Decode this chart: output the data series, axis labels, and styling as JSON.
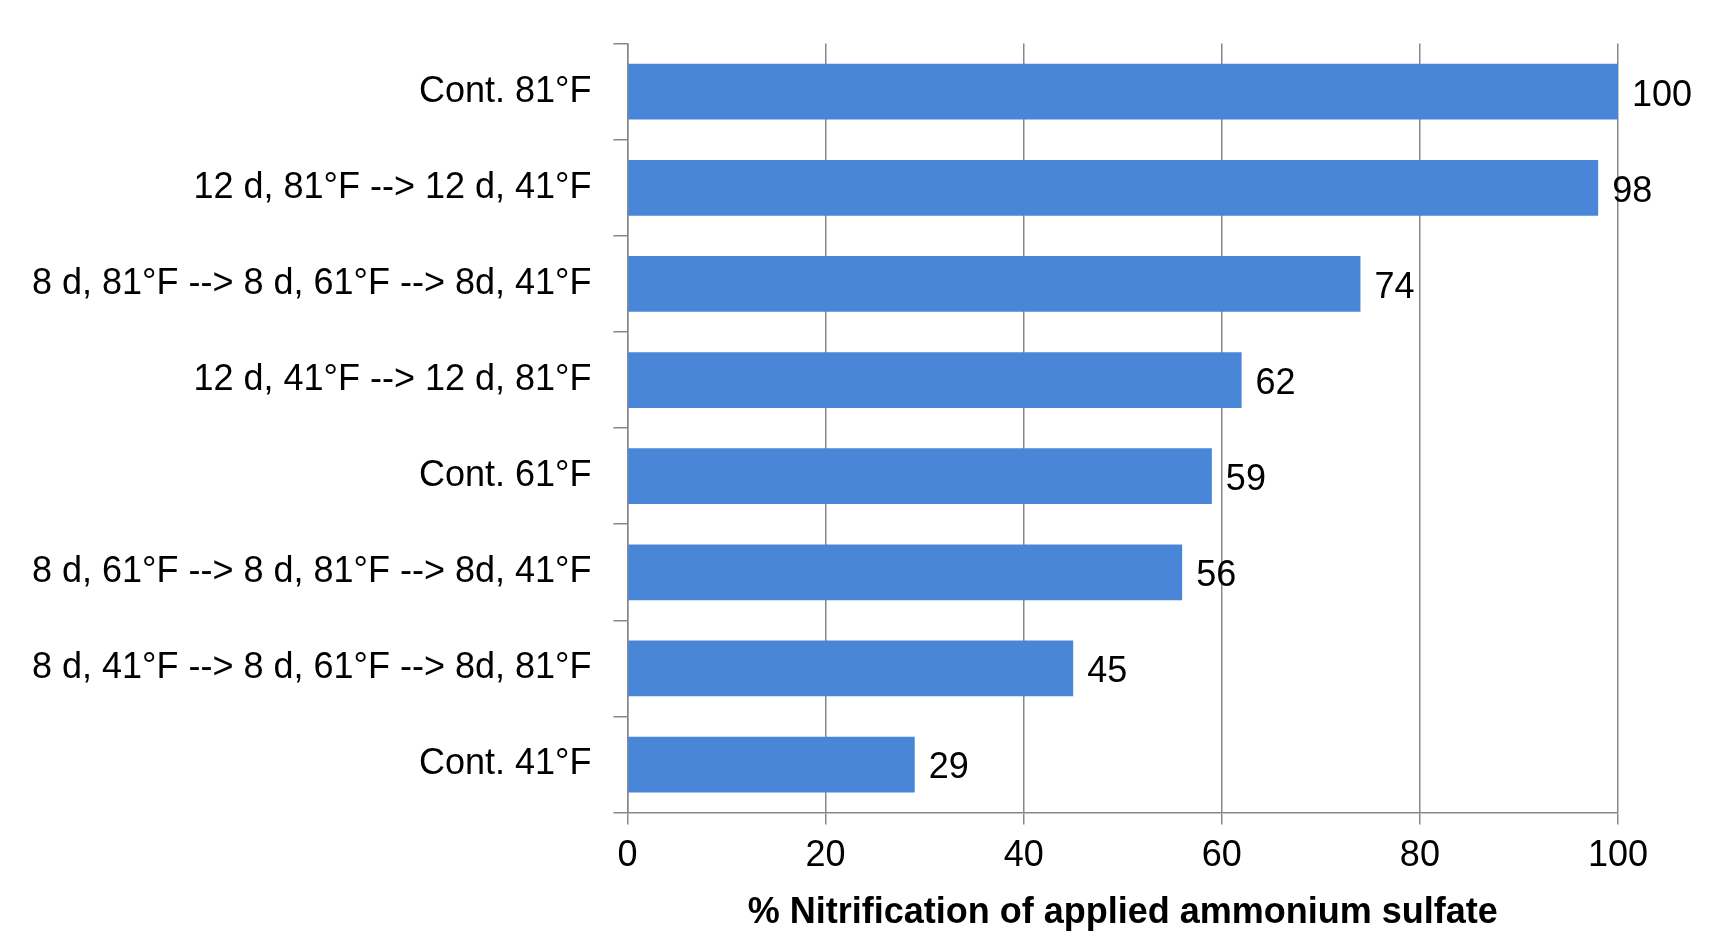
{
  "chart_data": {
    "type": "bar",
    "orientation": "horizontal",
    "xlabel": "% Nitrification of applied ammonium sulfate",
    "categories": [
      "Cont. 81°F",
      "12 d, 81°F --> 12 d, 41°F",
      "8 d, 81°F --> 8 d, 61°F --> 8d, 41°F",
      "12 d, 41°F --> 12 d, 81°F",
      "Cont. 61°F",
      "8 d, 61°F --> 8 d, 81°F --> 8d, 41°F",
      "8 d, 41°F --> 8 d, 61°F --> 8d, 81°F",
      "Cont. 41°F"
    ],
    "values": [
      100,
      98,
      74,
      62,
      59,
      56,
      45,
      29
    ],
    "color": "#4a86d8",
    "xlim": [
      0,
      100
    ],
    "xticks": [
      0,
      20,
      40,
      60,
      80,
      100
    ],
    "grid": "x",
    "data_labels": true,
    "legend": false
  }
}
